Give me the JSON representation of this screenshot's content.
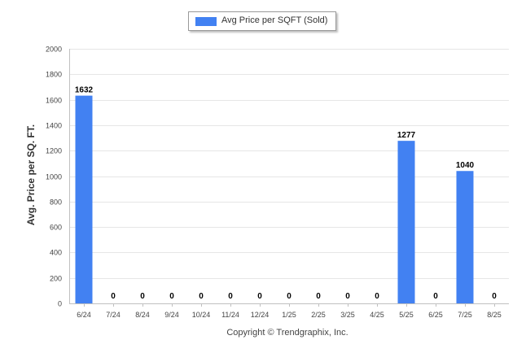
{
  "legend": {
    "label": "Avg Price per SQFT (Sold)"
  },
  "copyright": "Copyright © Trendgraphix, Inc.",
  "colors": {
    "bar": "#4281f2",
    "grid": "#e6e6e6",
    "axis": "#c0c0c0",
    "tick_text": "#444444"
  },
  "chart_data": {
    "type": "bar",
    "title": "",
    "xlabel": "",
    "ylabel": "Avg. Price per SQ. FT.",
    "categories": [
      "6/24",
      "7/24",
      "8/24",
      "9/24",
      "10/24",
      "11/24",
      "12/24",
      "1/25",
      "2/25",
      "3/25",
      "4/25",
      "5/25",
      "6/25",
      "7/25",
      "8/25"
    ],
    "series": [
      {
        "name": "Avg Price per SQFT (Sold)",
        "values": [
          1632,
          0,
          0,
          0,
          0,
          0,
          0,
          0,
          0,
          0,
          0,
          1277,
          0,
          1040,
          0
        ]
      }
    ],
    "ylim": [
      0,
      2000
    ],
    "yticks": [
      0,
      200,
      400,
      600,
      800,
      1000,
      1200,
      1400,
      1600,
      1800,
      2000
    ],
    "grid": true,
    "legend_position": "top-center",
    "data_labels": true
  }
}
